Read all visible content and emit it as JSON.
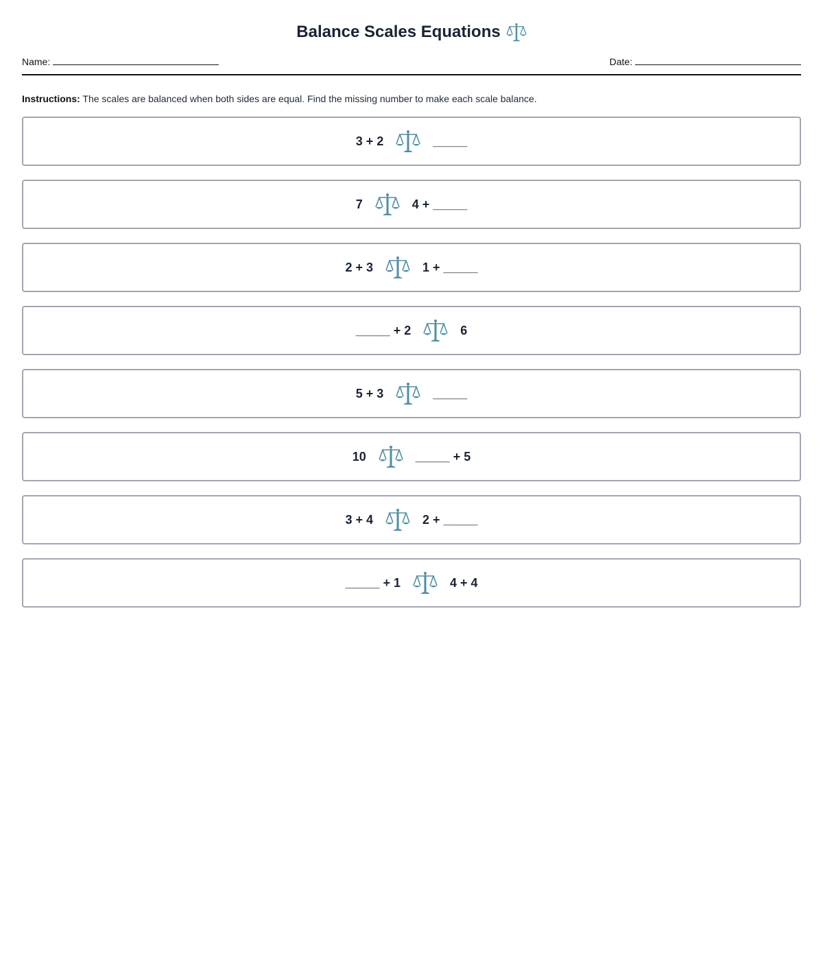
{
  "title": "Balance Scales Equations",
  "title_icon": "balance-scale-icon",
  "name_label": "Name:",
  "date_label": "Date:",
  "instructions_label": "Instructions:",
  "instructions_text": " The scales are balanced when both sides are equal. Find the missing number to make each scale balance.",
  "icon_color": "#4f8ea3",
  "problems": [
    {
      "left": "3 + 2",
      "right": "_____"
    },
    {
      "left": "7",
      "right": "4 + _____"
    },
    {
      "left": "2 + 3",
      "right": "1 + _____"
    },
    {
      "left": "_____ + 2",
      "right": "6"
    },
    {
      "left": "5 + 3",
      "right": "_____"
    },
    {
      "left": "10",
      "right": "_____ + 5"
    },
    {
      "left": "3 + 4",
      "right": "2 + _____"
    },
    {
      "left": "_____ + 1",
      "right": "4 + 4"
    }
  ]
}
